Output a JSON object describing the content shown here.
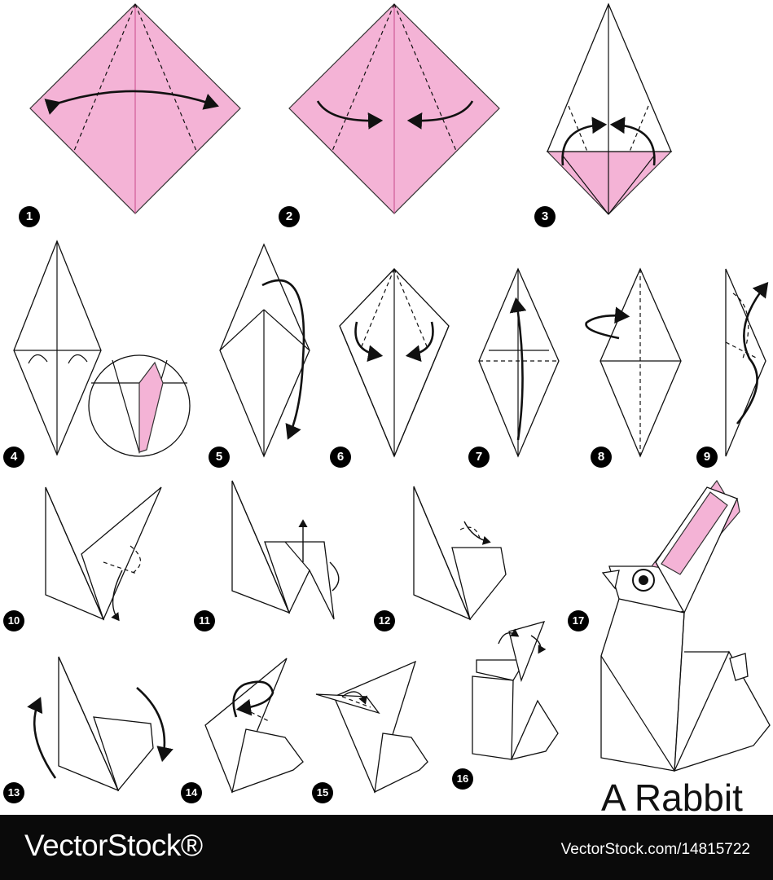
{
  "title": "A Rabbit",
  "steps": [
    "1",
    "2",
    "3",
    "4",
    "5",
    "6",
    "7",
    "8",
    "9",
    "10",
    "11",
    "12",
    "13",
    "14",
    "15",
    "16",
    "17"
  ],
  "footer": {
    "brand": "VectorStock®",
    "image_id": "VectorStock.com/14815722"
  },
  "colors": {
    "paper_color": "#f4b3d6",
    "outline": "#111111",
    "footer_bg": "#0a0a0a"
  }
}
